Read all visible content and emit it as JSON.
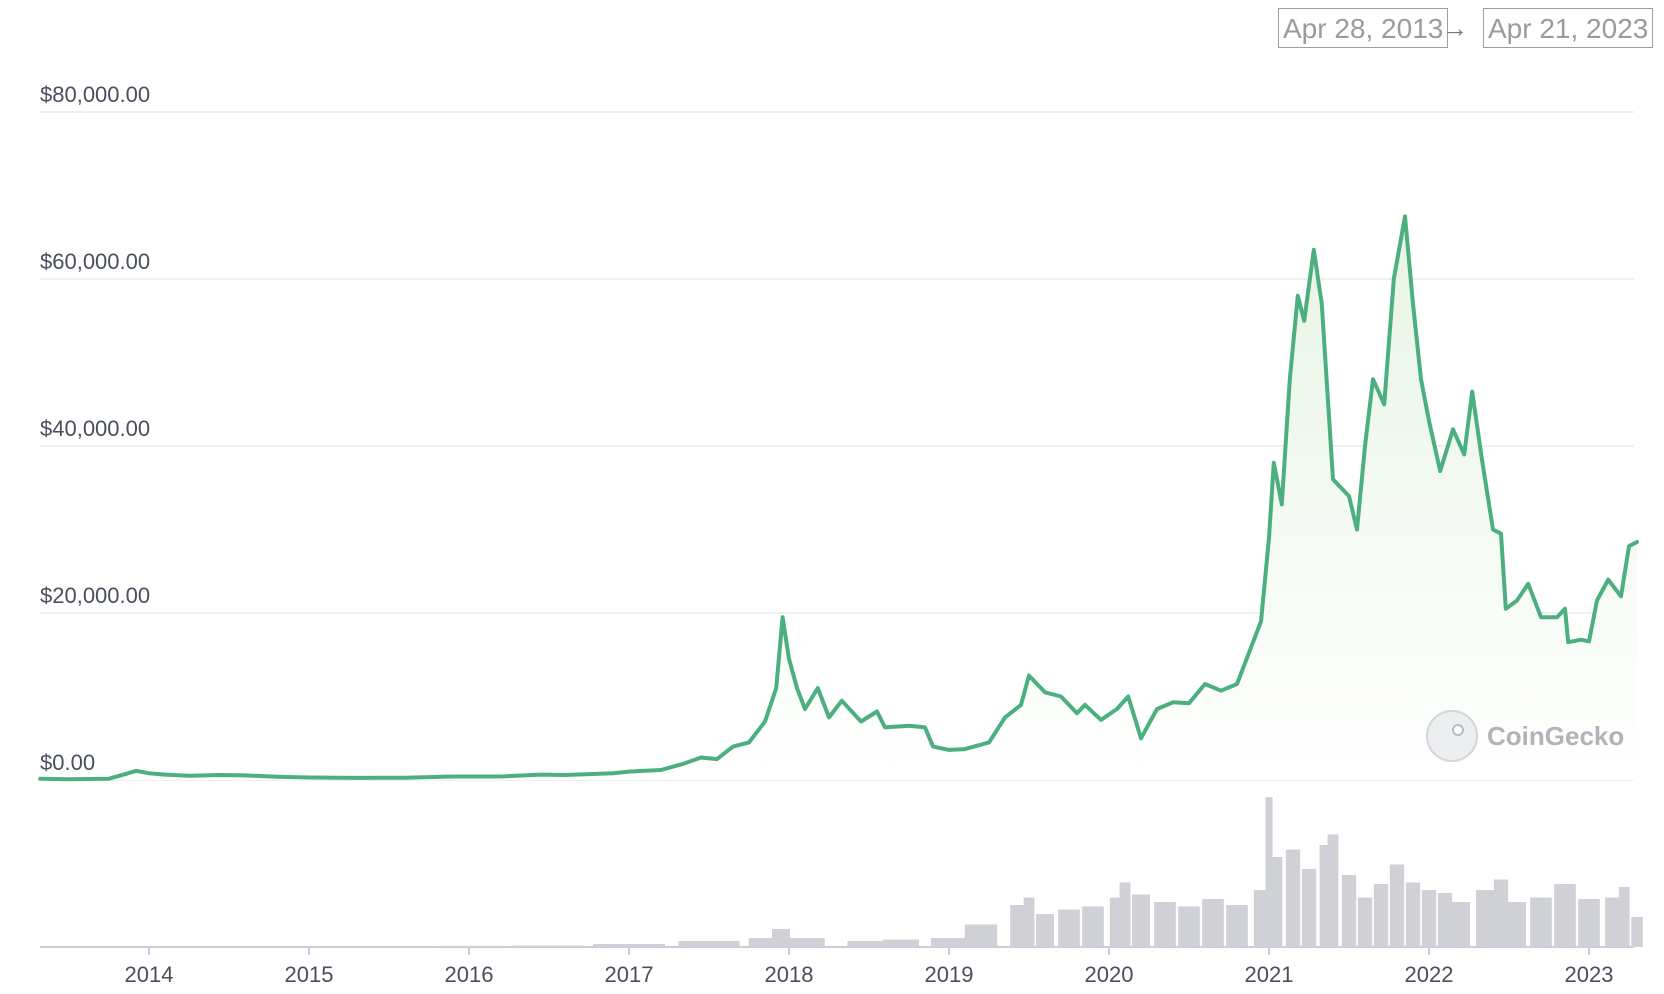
{
  "header": {
    "start_date": "Apr 28, 2013",
    "arrow": "→",
    "end_date": "Apr 21, 2023"
  },
  "watermark": "CoinGecko",
  "colors": {
    "price_line": "#4caf7f",
    "price_fill_top": "#e7f4e4",
    "volume": "#cfd1d6",
    "grid": "#ebebeb",
    "axis": "#c9cdd8"
  },
  "chart_data": {
    "type": "area",
    "title": "",
    "xlabel": "",
    "ylabel": "",
    "ylim": [
      0,
      80000
    ],
    "xlim": [
      2013.32,
      2023.3
    ],
    "y_ticks": [
      {
        "value": 0,
        "label": "$0.00"
      },
      {
        "value": 20000,
        "label": "$20,000.00"
      },
      {
        "value": 40000,
        "label": "$40,000.00"
      },
      {
        "value": 60000,
        "label": "$60,000.00"
      },
      {
        "value": 80000,
        "label": "$80,000.00"
      }
    ],
    "x_ticks": [
      {
        "value": 2014,
        "label": "2014"
      },
      {
        "value": 2015,
        "label": "2015"
      },
      {
        "value": 2016,
        "label": "2016"
      },
      {
        "value": 2017,
        "label": "2017"
      },
      {
        "value": 2018,
        "label": "2018"
      },
      {
        "value": 2019,
        "label": "2019"
      },
      {
        "value": 2020,
        "label": "2020"
      },
      {
        "value": 2021,
        "label": "2021"
      },
      {
        "value": 2022,
        "label": "2022"
      },
      {
        "value": 2023,
        "label": "2023"
      }
    ],
    "grid": true,
    "series": [
      {
        "points": [
          [
            2013.32,
            140
          ],
          [
            2013.5,
            100
          ],
          [
            2013.75,
            150
          ],
          [
            2013.85,
            700
          ],
          [
            2013.92,
            1100
          ],
          [
            2014.0,
            800
          ],
          [
            2014.1,
            650
          ],
          [
            2014.25,
            500
          ],
          [
            2014.45,
            600
          ],
          [
            2014.6,
            550
          ],
          [
            2014.8,
            380
          ],
          [
            2015.0,
            300
          ],
          [
            2015.3,
            250
          ],
          [
            2015.6,
            270
          ],
          [
            2015.9,
            420
          ],
          [
            2016.2,
            420
          ],
          [
            2016.45,
            650
          ],
          [
            2016.6,
            600
          ],
          [
            2016.9,
            800
          ],
          [
            2017.0,
            1000
          ],
          [
            2017.2,
            1200
          ],
          [
            2017.35,
            2000
          ],
          [
            2017.45,
            2700
          ],
          [
            2017.55,
            2500
          ],
          [
            2017.65,
            4000
          ],
          [
            2017.75,
            4500
          ],
          [
            2017.85,
            7000
          ],
          [
            2017.92,
            11000
          ],
          [
            2017.96,
            19500
          ],
          [
            2018.0,
            14500
          ],
          [
            2018.05,
            11000
          ],
          [
            2018.1,
            8500
          ],
          [
            2018.18,
            11000
          ],
          [
            2018.25,
            7500
          ],
          [
            2018.33,
            9500
          ],
          [
            2018.45,
            7000
          ],
          [
            2018.55,
            8200
          ],
          [
            2018.6,
            6300
          ],
          [
            2018.75,
            6500
          ],
          [
            2018.85,
            6300
          ],
          [
            2018.9,
            4000
          ],
          [
            2019.0,
            3600
          ],
          [
            2019.1,
            3700
          ],
          [
            2019.25,
            4500
          ],
          [
            2019.35,
            7500
          ],
          [
            2019.45,
            9000
          ],
          [
            2019.5,
            12500
          ],
          [
            2019.6,
            10500
          ],
          [
            2019.7,
            10000
          ],
          [
            2019.8,
            8000
          ],
          [
            2019.85,
            9000
          ],
          [
            2019.95,
            7200
          ],
          [
            2020.05,
            8500
          ],
          [
            2020.12,
            10000
          ],
          [
            2020.2,
            5000
          ],
          [
            2020.3,
            8500
          ],
          [
            2020.4,
            9300
          ],
          [
            2020.5,
            9200
          ],
          [
            2020.6,
            11500
          ],
          [
            2020.7,
            10700
          ],
          [
            2020.8,
            11500
          ],
          [
            2020.87,
            15000
          ],
          [
            2020.95,
            19000
          ],
          [
            2021.0,
            29000
          ],
          [
            2021.03,
            38000
          ],
          [
            2021.08,
            33000
          ],
          [
            2021.13,
            48000
          ],
          [
            2021.18,
            58000
          ],
          [
            2021.22,
            55000
          ],
          [
            2021.28,
            63500
          ],
          [
            2021.33,
            57000
          ],
          [
            2021.36,
            48000
          ],
          [
            2021.4,
            36000
          ],
          [
            2021.45,
            35000
          ],
          [
            2021.5,
            34000
          ],
          [
            2021.55,
            30000
          ],
          [
            2021.6,
            40000
          ],
          [
            2021.65,
            48000
          ],
          [
            2021.72,
            45000
          ],
          [
            2021.78,
            60000
          ],
          [
            2021.85,
            67500
          ],
          [
            2021.9,
            57000
          ],
          [
            2021.95,
            48000
          ],
          [
            2022.0,
            43000
          ],
          [
            2022.07,
            37000
          ],
          [
            2022.15,
            42000
          ],
          [
            2022.22,
            39000
          ],
          [
            2022.27,
            46500
          ],
          [
            2022.33,
            38500
          ],
          [
            2022.4,
            30000
          ],
          [
            2022.45,
            29500
          ],
          [
            2022.48,
            20500
          ],
          [
            2022.55,
            21500
          ],
          [
            2022.62,
            23500
          ],
          [
            2022.7,
            19500
          ],
          [
            2022.8,
            19500
          ],
          [
            2022.85,
            20500
          ],
          [
            2022.87,
            16500
          ],
          [
            2022.95,
            16800
          ],
          [
            2023.0,
            16600
          ],
          [
            2023.05,
            21500
          ],
          [
            2023.12,
            24000
          ],
          [
            2023.2,
            22000
          ],
          [
            2023.25,
            28000
          ],
          [
            2023.3,
            28500
          ]
        ]
      }
    ],
    "volume_bars": [
      [
        2013.5,
        0.003
      ],
      [
        2014.0,
        0.004
      ],
      [
        2014.5,
        0.005
      ],
      [
        2015.0,
        0.004
      ],
      [
        2015.5,
        0.005
      ],
      [
        2016.0,
        0.008
      ],
      [
        2016.5,
        0.01
      ],
      [
        2017.0,
        0.02
      ],
      [
        2017.5,
        0.04
      ],
      [
        2017.85,
        0.06
      ],
      [
        2017.95,
        0.12
      ],
      [
        2018.1,
        0.06
      ],
      [
        2018.5,
        0.04
      ],
      [
        2018.7,
        0.05
      ],
      [
        2019.0,
        0.06
      ],
      [
        2019.2,
        0.15
      ],
      [
        2019.45,
        0.28
      ],
      [
        2019.5,
        0.33
      ],
      [
        2019.6,
        0.22
      ],
      [
        2019.75,
        0.25
      ],
      [
        2019.9,
        0.27
      ],
      [
        2020.05,
        0.33
      ],
      [
        2020.1,
        0.43
      ],
      [
        2020.2,
        0.35
      ],
      [
        2020.35,
        0.3
      ],
      [
        2020.5,
        0.27
      ],
      [
        2020.65,
        0.32
      ],
      [
        2020.8,
        0.28
      ],
      [
        2020.95,
        0.38
      ],
      [
        2021.0,
        1.0
      ],
      [
        2021.05,
        0.6
      ],
      [
        2021.15,
        0.65
      ],
      [
        2021.25,
        0.52
      ],
      [
        2021.35,
        0.68
      ],
      [
        2021.4,
        0.75
      ],
      [
        2021.5,
        0.48
      ],
      [
        2021.6,
        0.33
      ],
      [
        2021.7,
        0.42
      ],
      [
        2021.8,
        0.55
      ],
      [
        2021.9,
        0.43
      ],
      [
        2022.0,
        0.38
      ],
      [
        2022.1,
        0.36
      ],
      [
        2022.2,
        0.3
      ],
      [
        2022.35,
        0.38
      ],
      [
        2022.45,
        0.45
      ],
      [
        2022.55,
        0.3
      ],
      [
        2022.7,
        0.33
      ],
      [
        2022.85,
        0.42
      ],
      [
        2023.0,
        0.32
      ],
      [
        2023.15,
        0.33
      ],
      [
        2023.22,
        0.4
      ],
      [
        2023.3,
        0.2
      ]
    ]
  }
}
